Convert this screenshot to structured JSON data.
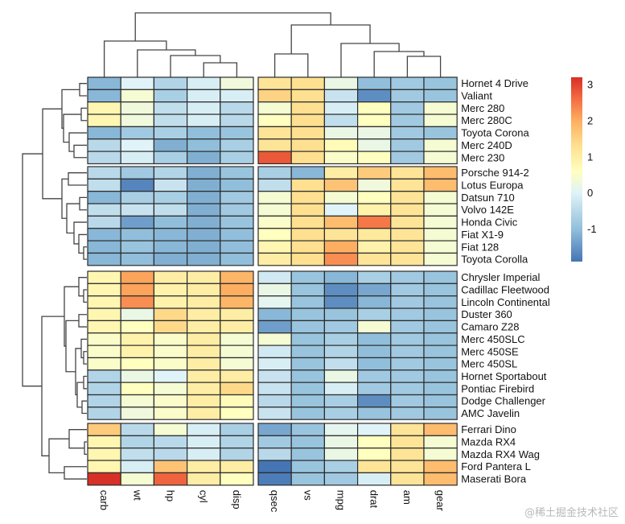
{
  "chart_data": {
    "type": "heatmap",
    "title": "",
    "xlabel": "",
    "ylabel": "",
    "columns": [
      "carb",
      "wt",
      "hp",
      "cyl",
      "disp",
      "qsec",
      "vs",
      "mpg",
      "drat",
      "am",
      "gear"
    ],
    "column_groups": [
      [
        "carb",
        "wt",
        "hp",
        "cyl",
        "disp"
      ],
      [
        "qsec",
        "vs",
        "mpg",
        "drat",
        "am",
        "gear"
      ]
    ],
    "row_groups": [
      [
        "Hornet 4 Drive",
        "Valiant",
        "Merc 280",
        "Merc 280C",
        "Toyota Corona",
        "Merc 240D",
        "Merc 230"
      ],
      [
        "Porsche 914-2",
        "Lotus Europa",
        "Datsun 710",
        "Volvo 142E",
        "Honda Civic",
        "Fiat X1-9",
        "Fiat 128",
        "Toyota Corolla"
      ],
      [
        "Chrysler Imperial",
        "Cadillac Fleetwood",
        "Lincoln Continental",
        "Duster 360",
        "Camaro Z28",
        "Merc 450SLC",
        "Merc 450SE",
        "Merc 450SL",
        "Hornet Sportabout",
        "Pontiac Firebird",
        "Dodge Challenger",
        "AMC Javelin"
      ],
      [
        "Ferrari Dino",
        "Mazda RX4",
        "Mazda RX4 Wag",
        "Ford Pantera L",
        "Maserati Bora"
      ]
    ],
    "values": [
      [
        -1.1,
        0.0,
        -0.6,
        -0.1,
        0.3,
        1.2,
        1.3,
        0.2,
        -1.0,
        -0.8,
        -0.9
      ],
      [
        -1.1,
        0.4,
        -0.7,
        -0.1,
        -0.1,
        1.5,
        1.3,
        -0.3,
        -1.6,
        -0.8,
        -0.9
      ],
      [
        0.8,
        0.3,
        -0.4,
        -0.1,
        -0.5,
        0.4,
        1.3,
        -0.1,
        0.6,
        -0.8,
        0.4
      ],
      [
        0.8,
        0.3,
        -0.4,
        -0.1,
        -0.5,
        0.6,
        1.3,
        -0.4,
        0.6,
        -0.8,
        0.4
      ],
      [
        -1.1,
        -0.8,
        -0.7,
        -1.0,
        -0.9,
        1.2,
        1.3,
        0.2,
        0.2,
        -0.8,
        -0.9
      ],
      [
        -0.5,
        0.0,
        -1.2,
        -1.0,
        -0.7,
        1.2,
        1.3,
        0.7,
        0.2,
        -0.8,
        0.4
      ],
      [
        -0.5,
        -0.1,
        -0.7,
        -1.2,
        -0.7,
        2.8,
        1.3,
        0.5,
        0.6,
        -0.8,
        0.4
      ],
      [
        -0.5,
        -0.8,
        -0.6,
        -1.2,
        -0.9,
        -0.7,
        -1.1,
        1.0,
        1.6,
        1.2,
        1.8
      ],
      [
        -0.4,
        -1.7,
        -0.3,
        -1.2,
        -1.0,
        -0.4,
        1.3,
        1.7,
        0.3,
        1.2,
        1.8
      ],
      [
        -1.1,
        -0.7,
        -0.7,
        -1.2,
        -0.8,
        0.4,
        1.3,
        0.4,
        0.6,
        1.2,
        0.4
      ],
      [
        -0.4,
        -0.3,
        -0.4,
        -1.2,
        -0.8,
        0.4,
        1.3,
        0.0,
        0.9,
        1.2,
        0.4
      ],
      [
        -0.5,
        -1.4,
        -1.0,
        -1.2,
        -0.9,
        0.5,
        1.3,
        1.8,
        2.5,
        1.2,
        0.4
      ],
      [
        -1.1,
        -1.0,
        -1.1,
        -1.2,
        -1.0,
        0.6,
        1.3,
        1.2,
        1.1,
        1.2,
        0.4
      ],
      [
        -1.1,
        -0.9,
        -1.1,
        -1.2,
        -1.0,
        0.8,
        1.3,
        2.0,
        0.9,
        1.2,
        0.4
      ],
      [
        -1.1,
        -1.0,
        -1.2,
        -1.2,
        -1.0,
        1.0,
        1.3,
        2.3,
        1.2,
        1.2,
        0.4
      ],
      [
        0.8,
        2.1,
        1.0,
        1.0,
        1.9,
        -0.2,
        -0.9,
        -1.1,
        -0.7,
        -0.8,
        -0.9
      ],
      [
        0.8,
        2.1,
        0.9,
        1.0,
        2.0,
        0.2,
        -0.9,
        -1.6,
        -1.3,
        -0.8,
        -0.9
      ],
      [
        0.8,
        2.3,
        0.9,
        1.0,
        1.9,
        0.1,
        -0.9,
        -1.6,
        -1.1,
        -0.8,
        -0.9
      ],
      [
        0.8,
        0.2,
        1.4,
        1.0,
        1.0,
        -1.1,
        -0.9,
        -0.9,
        -0.7,
        -0.8,
        -0.9
      ],
      [
        0.8,
        0.6,
        1.4,
        1.0,
        1.0,
        -1.4,
        -0.9,
        -0.8,
        0.4,
        -0.8,
        -0.9
      ],
      [
        0.5,
        0.9,
        0.5,
        1.0,
        0.4,
        0.4,
        -0.9,
        -0.7,
        -1.0,
        -0.8,
        -0.9
      ],
      [
        0.5,
        0.9,
        0.5,
        1.0,
        0.4,
        -0.2,
        -0.9,
        -0.6,
        -1.0,
        -0.8,
        -0.9
      ],
      [
        0.5,
        0.6,
        0.5,
        1.0,
        0.4,
        -0.1,
        -0.9,
        -0.4,
        -1.0,
        -0.8,
        -0.9
      ],
      [
        -0.6,
        0.2,
        0.0,
        1.0,
        1.0,
        -0.3,
        -0.9,
        0.2,
        -0.8,
        -0.8,
        -0.9
      ],
      [
        -0.6,
        0.6,
        0.4,
        1.0,
        1.4,
        -0.3,
        -0.9,
        -0.1,
        -0.8,
        -0.8,
        -0.9
      ],
      [
        -0.6,
        0.4,
        0.5,
        1.0,
        0.7,
        -0.5,
        -0.9,
        -0.7,
        -1.6,
        -0.8,
        -0.9
      ],
      [
        -0.6,
        0.3,
        0.5,
        1.0,
        0.6,
        -0.3,
        -0.9,
        -0.7,
        -0.9,
        -0.8,
        -0.9
      ],
      [
        1.6,
        -0.5,
        0.4,
        -0.1,
        -0.7,
        -1.3,
        -0.9,
        0.1,
        0.0,
        1.2,
        1.8
      ],
      [
        0.8,
        -0.6,
        -0.5,
        -0.1,
        -0.6,
        -0.8,
        -0.9,
        0.2,
        0.6,
        1.2,
        0.4
      ],
      [
        0.8,
        -0.4,
        -0.5,
        -0.1,
        -0.6,
        -0.5,
        -0.9,
        0.2,
        0.6,
        1.2,
        0.4
      ],
      [
        0.8,
        -0.1,
        1.7,
        1.0,
        1.0,
        -1.9,
        -0.9,
        -0.7,
        1.2,
        1.2,
        1.8
      ],
      [
        3.2,
        0.4,
        2.7,
        1.0,
        0.6,
        -1.8,
        -0.9,
        -0.8,
        -0.1,
        1.2,
        1.8
      ]
    ],
    "color_scale": {
      "min": -1.9,
      "max": 3.2,
      "stops": [
        {
          "value": -1.9,
          "color": "#4575b4"
        },
        {
          "value": -1.0,
          "color": "#91bfdb"
        },
        {
          "value": 0.0,
          "color": "#e0f3f8"
        },
        {
          "value": 0.6,
          "color": "#ffffbf"
        },
        {
          "value": 1.3,
          "color": "#fee090"
        },
        {
          "value": 2.0,
          "color": "#fdae61"
        },
        {
          "value": 2.6,
          "color": "#f46d43"
        },
        {
          "value": 3.2,
          "color": "#d73027"
        }
      ]
    },
    "legend": {
      "ticks": [
        3,
        2,
        1,
        0,
        -1
      ],
      "placement": "right"
    },
    "column_dendrogram": true,
    "row_dendrogram": true
  },
  "watermark": "@稀土掘金技术社区"
}
